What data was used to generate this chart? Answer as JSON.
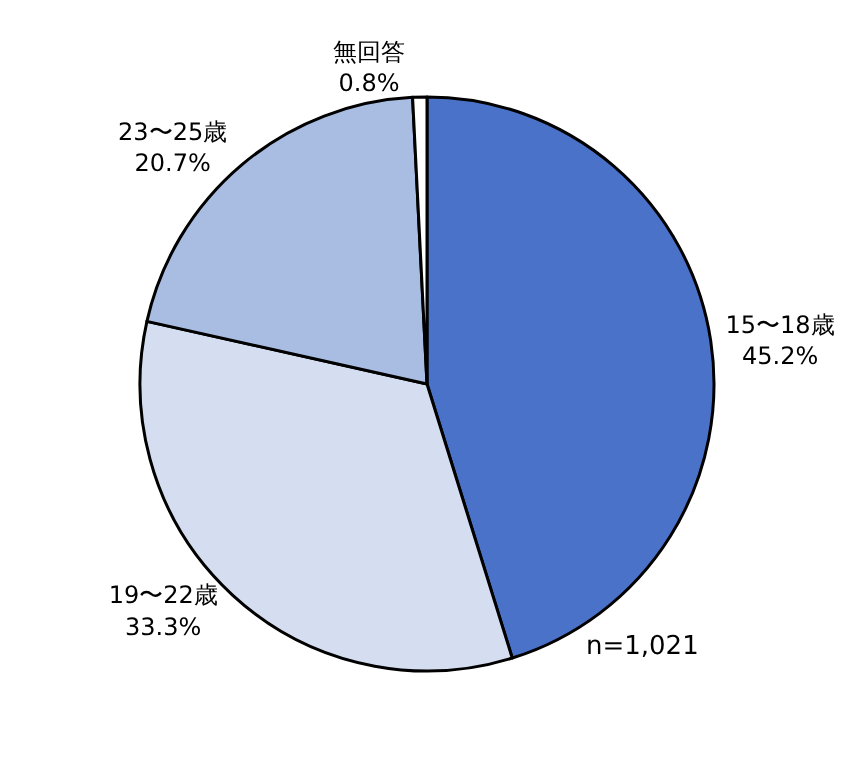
{
  "chart_data": {
    "type": "pie",
    "categories": [
      "15〜18歳",
      "19〜22歳",
      "23〜25歳",
      "無回答"
    ],
    "values": [
      45.2,
      33.3,
      20.7,
      0.8
    ],
    "value_labels": [
      "45.2%",
      "33.3%",
      "20.7%",
      "0.8%"
    ],
    "colors": [
      "#4a72c8",
      "#d5def0",
      "#a9bde3",
      "#ffffff"
    ],
    "annotations": [
      "n=1,021"
    ],
    "legend": false
  }
}
